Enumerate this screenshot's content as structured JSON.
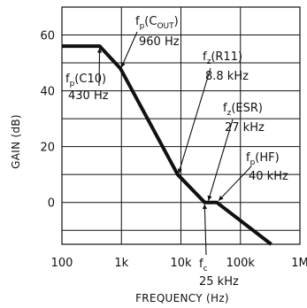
{
  "chart_data": {
    "type": "line",
    "xlabel": "FREQUENCY (Hz)",
    "ylabel": "GAIN (dB)",
    "x_scale": "log",
    "xlim": [
      100,
      1000000
    ],
    "ylim": [
      -15,
      70
    ],
    "grid": true,
    "x_tick_values": [
      100,
      1000,
      10000,
      100000,
      1000000
    ],
    "x_tick_labels": [
      "100",
      "1k",
      "10k",
      "100k",
      "1M"
    ],
    "y_tick_values": [
      0,
      20,
      40,
      60
    ],
    "y_tick_labels": [
      "0",
      "20",
      "40",
      "60"
    ],
    "series": [
      {
        "x": [
          100,
          430,
          960,
          8800,
          25000,
          40000,
          330000
        ],
        "y": [
          56,
          56,
          48,
          10,
          0,
          0,
          -15
        ]
      }
    ],
    "annotations": [
      {
        "id": "c10",
        "symbol": "f",
        "sub": "p",
        "paren": "(",
        "subsub": "",
        "name": "C10",
        "close": ")",
        "value": "430 Hz",
        "x": 430,
        "y": 56
      },
      {
        "id": "cout",
        "symbol": "f",
        "sub": "p",
        "paren": "(",
        "subsub": "",
        "name": "C",
        "name_sub": "OUT",
        "close": ")",
        "value": "960 Hz",
        "x": 960,
        "y": 48
      },
      {
        "id": "r11",
        "symbol": "f",
        "sub": "z",
        "paren": "(",
        "subsub": "",
        "name": "R11",
        "close": ")",
        "value": "8.8 kHz",
        "x": 8800,
        "y": 10
      },
      {
        "id": "esr",
        "symbol": "f",
        "sub": "z",
        "paren": "(",
        "subsub": "",
        "name": "ESR",
        "close": ")",
        "value": "27 kHz",
        "x": 27000,
        "y": 0
      },
      {
        "id": "hf",
        "symbol": "f",
        "sub": "p",
        "paren": "(",
        "subsub": "",
        "name": "HF",
        "close": ")",
        "value": "40 kHz",
        "x": 40000,
        "y": 0
      },
      {
        "id": "fc",
        "symbol": "f",
        "sub": "c",
        "value": "25 kHz",
        "x": 25000,
        "y": 0
      }
    ]
  }
}
